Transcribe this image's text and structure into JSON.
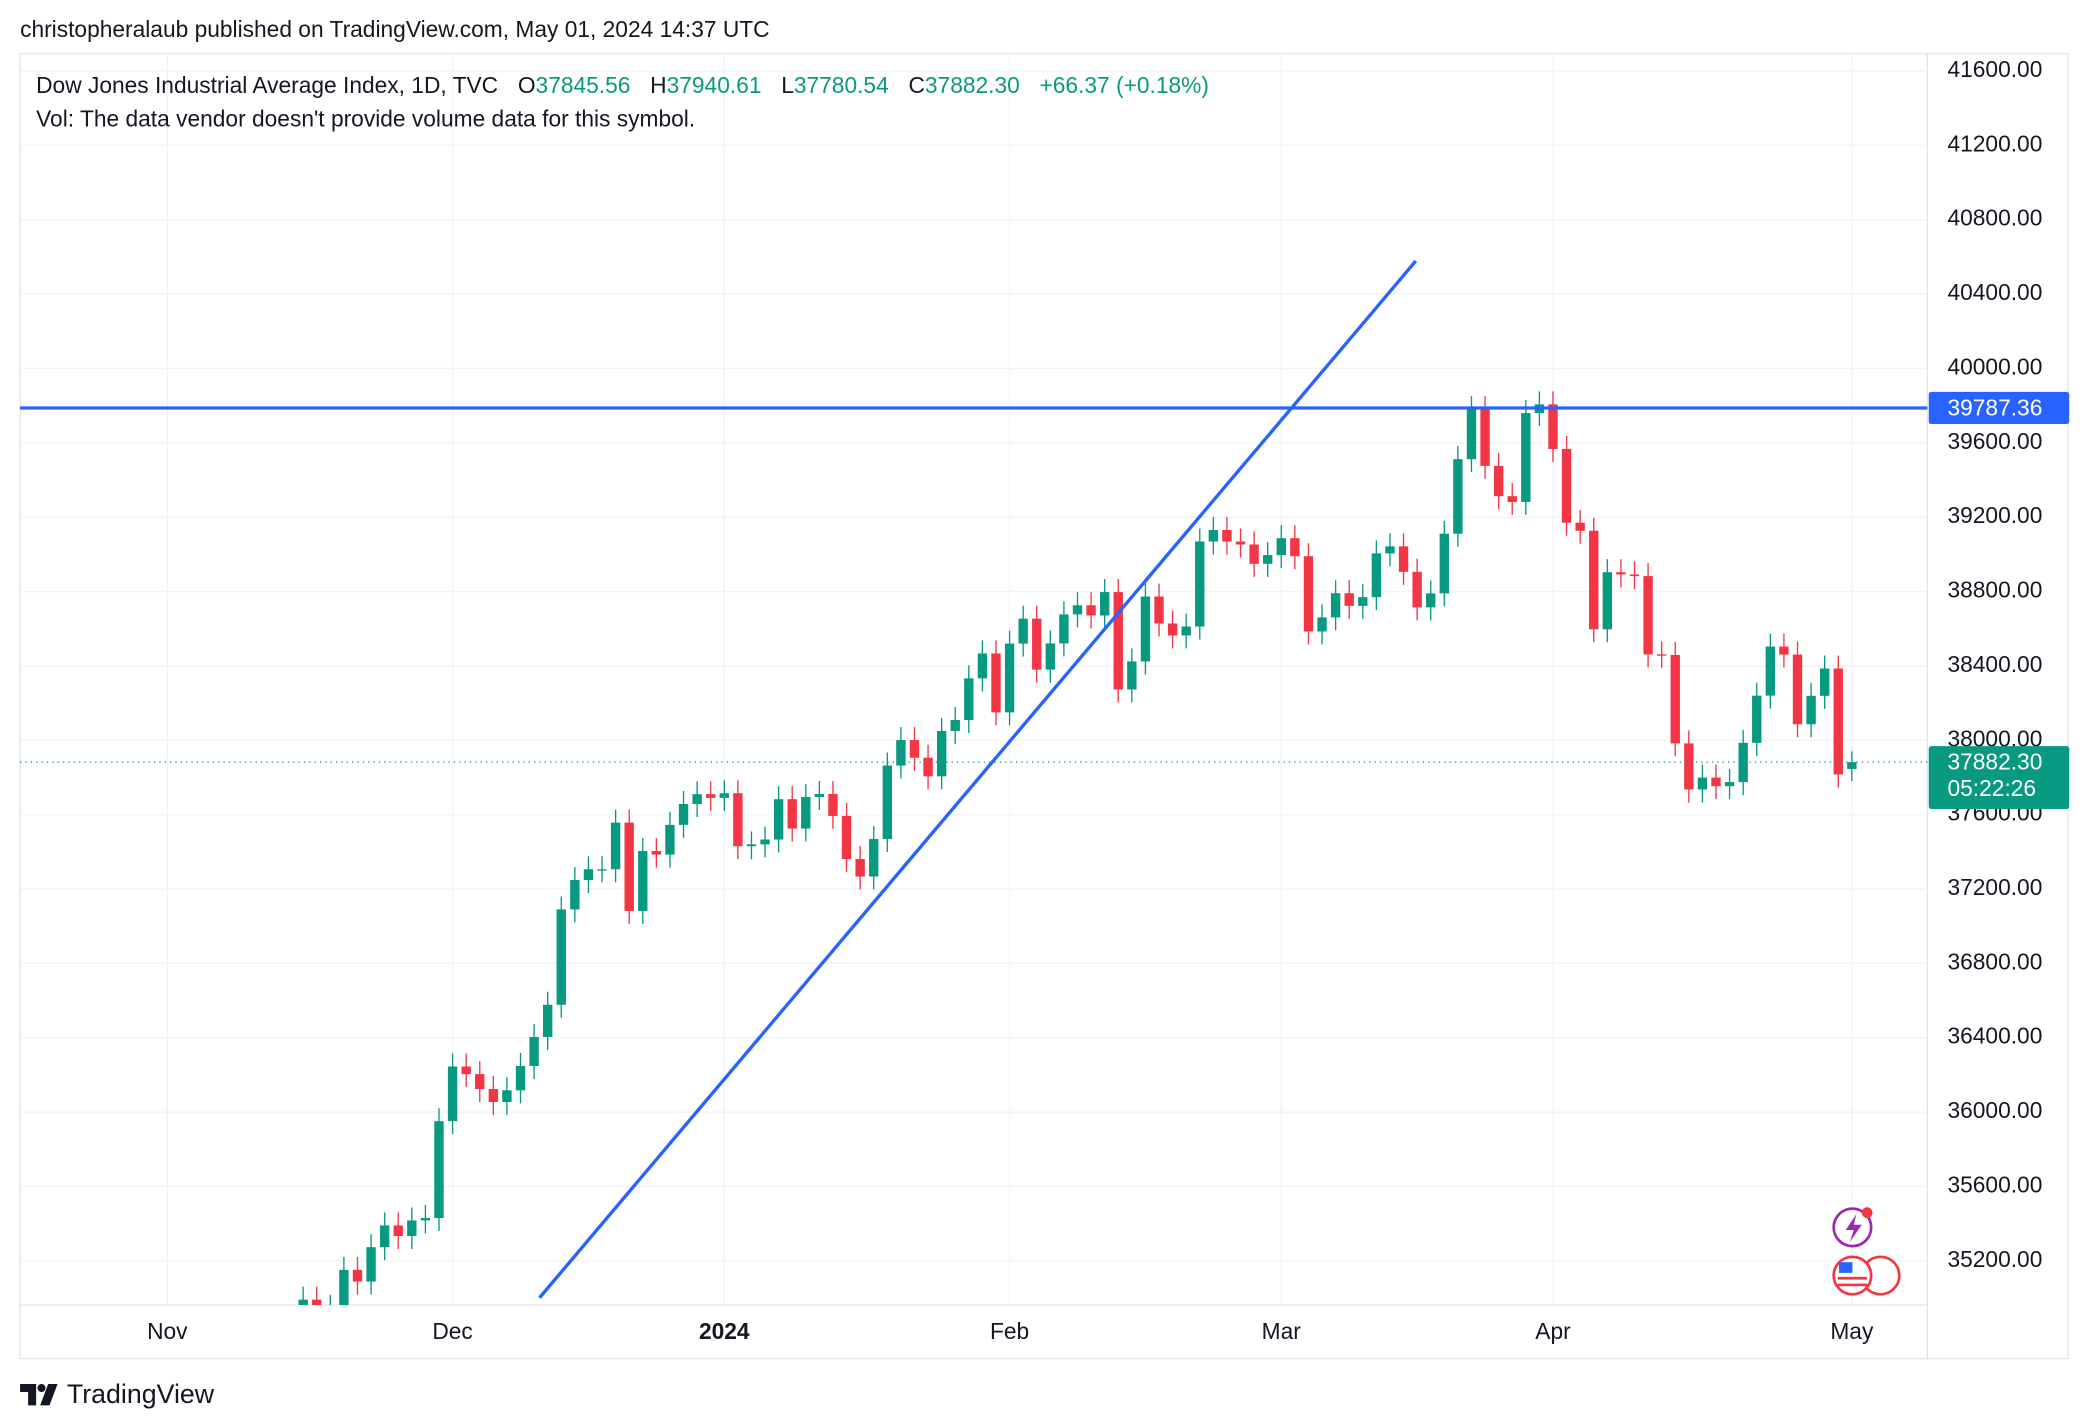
{
  "header": {
    "published": "christopheralaub published on TradingView.com, May 01, 2024 14:37 UTC"
  },
  "legend": {
    "symbol": "Dow Jones Industrial Average Index, 1D, TVC",
    "fields": [
      {
        "key": "O",
        "value": "37845.56"
      },
      {
        "key": "H",
        "value": "37940.61"
      },
      {
        "key": "L",
        "value": "37780.54"
      },
      {
        "key": "C",
        "value": "37882.30"
      }
    ],
    "change": "+66.37 (+0.18%)",
    "volume": "Vol: The data vendor doesn't provide volume data for this symbol."
  },
  "footer": {
    "brand": "TradingView"
  },
  "chart_data": {
    "type": "candlestick",
    "up_color": "#089981",
    "down_color": "#f23645",
    "grid": true,
    "xlim": [
      -10.837,
      129.56
    ],
    "xticks": [
      {
        "value": 0,
        "label": "Nov"
      },
      {
        "value": 21,
        "label": "Dec"
      },
      {
        "value": 41,
        "label": "2024"
      },
      {
        "value": 62,
        "label": "Feb"
      },
      {
        "value": 82,
        "label": "Mar"
      },
      {
        "value": 102,
        "label": "Apr"
      },
      {
        "value": 124,
        "label": "May"
      }
    ],
    "ylim": [
      34962,
      41694
    ],
    "yticks": [
      {
        "value": 35200,
        "label": "35200.00"
      },
      {
        "value": 35600,
        "label": "35600.00"
      },
      {
        "value": 36000,
        "label": "36000.00"
      },
      {
        "value": 36400,
        "label": "36400.00"
      },
      {
        "value": 36800,
        "label": "36800.00"
      },
      {
        "value": 37200,
        "label": "37200.00"
      },
      {
        "value": 37600,
        "label": "37600.00"
      },
      {
        "value": 38000,
        "label": "38000.00"
      },
      {
        "value": 38400,
        "label": "38400.00"
      },
      {
        "value": 38800,
        "label": "38800.00"
      },
      {
        "value": 39200,
        "label": "39200.00"
      },
      {
        "value": 39600,
        "label": "39600.00"
      },
      {
        "value": 40000,
        "label": "40000.00"
      },
      {
        "value": 40400,
        "label": "40400.00"
      },
      {
        "value": 40800,
        "label": "40800.00"
      },
      {
        "value": 41200,
        "label": "41200.00"
      },
      {
        "value": 41600,
        "label": "41600.00"
      }
    ],
    "candles": {
      "x": [
        10,
        11,
        12,
        13,
        14,
        15,
        16,
        17,
        18,
        19,
        20,
        21,
        22,
        23,
        24,
        25,
        26,
        27,
        28,
        29,
        30,
        31,
        32,
        33,
        34,
        35,
        36,
        37,
        38,
        39,
        40,
        41,
        42,
        43,
        44,
        45,
        46,
        47,
        48,
        49,
        50,
        51,
        52,
        53,
        54,
        55,
        56,
        57,
        58,
        59,
        60,
        61,
        62,
        63,
        64,
        65,
        66,
        67,
        68,
        69,
        70,
        71,
        72,
        73,
        74,
        75,
        76,
        77,
        78,
        79,
        80,
        81,
        82,
        83,
        84,
        85,
        86,
        87,
        88,
        89,
        90,
        91,
        92,
        93,
        94,
        95,
        96,
        97,
        98,
        99,
        100,
        101,
        102,
        103,
        104,
        105,
        106,
        107,
        108,
        109,
        110,
        111,
        112,
        113,
        114,
        115,
        116,
        117,
        118,
        119,
        120,
        121,
        122,
        123,
        124
      ],
      "open": [
        34900,
        34991,
        34945,
        34947,
        35151,
        35088,
        35273,
        35390,
        35333,
        35417,
        35430,
        35951,
        36245,
        36204,
        36124,
        36054,
        36117,
        36248,
        36404,
        36577,
        37090,
        37248,
        37306,
        37306,
        37557,
        37082,
        37404,
        37385,
        37545,
        37657,
        37710,
        37690,
        37715,
        37430,
        37440,
        37466,
        37683,
        37525,
        37695,
        37711,
        37593,
        37361,
        37267,
        37469,
        37864,
        38001,
        37906,
        37806,
        38050,
        38109,
        38333,
        38467,
        38150,
        38520,
        38654,
        38380,
        38521,
        38677,
        38726,
        38671,
        38797,
        38273,
        38424,
        38773,
        38628,
        38564,
        38612,
        39069,
        39131,
        39069,
        39053,
        38949,
        38996,
        39087,
        38990,
        38585,
        38661,
        38791,
        38723,
        38770,
        39005,
        39043,
        38906,
        38715,
        38790,
        39111,
        39512,
        39781,
        39476,
        39313,
        39282,
        39760,
        39807,
        39567,
        39170,
        39127,
        38597,
        38904,
        38892,
        38883,
        38462,
        38459,
        37983,
        37735,
        37799,
        37753,
        37775,
        37986,
        38240,
        38504,
        38461,
        38086,
        38239,
        38386,
        37845.56
      ],
      "high": [
        35061,
        35061,
        35017,
        35221,
        35221,
        35343,
        35460,
        35460,
        35487,
        35500,
        36021,
        36315,
        36315,
        36274,
        36194,
        36187,
        36318,
        36474,
        36647,
        37160,
        37318,
        37376,
        37376,
        37627,
        37627,
        37474,
        37474,
        37615,
        37727,
        37780,
        37780,
        37785,
        37785,
        37510,
        37536,
        37753,
        37753,
        37765,
        37781,
        37781,
        37663,
        37431,
        37539,
        37934,
        38071,
        38071,
        37976,
        38120,
        38179,
        38403,
        38537,
        38537,
        38590,
        38724,
        38724,
        38591,
        38747,
        38796,
        38796,
        38867,
        38867,
        38494,
        38843,
        38843,
        38698,
        38682,
        39139,
        39201,
        39201,
        39139,
        39123,
        39066,
        39157,
        39157,
        39060,
        38731,
        38861,
        38861,
        38840,
        39075,
        39113,
        39113,
        38976,
        38860,
        39181,
        39582,
        39851,
        39851,
        39546,
        39383,
        39830,
        39877,
        39877,
        39637,
        39240,
        39197,
        38974,
        38974,
        38962,
        38953,
        38532,
        38529,
        38053,
        37869,
        37869,
        37845,
        38056,
        38310,
        38574,
        38574,
        38531,
        38309,
        38456,
        38456,
        37940.61
      ],
      "low": [
        34830,
        34875,
        34875,
        34877,
        35018,
        35018,
        35203,
        35263,
        35263,
        35347,
        35360,
        35881,
        36134,
        36054,
        35984,
        35984,
        36047,
        36178,
        36334,
        36507,
        37020,
        37178,
        37236,
        37236,
        37012,
        37012,
        37315,
        37315,
        37475,
        37587,
        37620,
        37620,
        37360,
        37360,
        37370,
        37396,
        37455,
        37455,
        37625,
        37523,
        37291,
        37197,
        37197,
        37399,
        37794,
        37836,
        37736,
        37736,
        37980,
        38039,
        38263,
        38080,
        38080,
        38450,
        38310,
        38310,
        38451,
        38607,
        38601,
        38601,
        38203,
        38203,
        38354,
        38558,
        38494,
        38494,
        38542,
        38999,
        38999,
        38983,
        38879,
        38879,
        38926,
        38920,
        38515,
        38515,
        38591,
        38653,
        38653,
        38700,
        38935,
        38836,
        38645,
        38645,
        38720,
        39041,
        39442,
        39406,
        39243,
        39212,
        39212,
        39690,
        39497,
        39100,
        39057,
        38527,
        38527,
        38822,
        38813,
        38392,
        38389,
        37913,
        37665,
        37665,
        37683,
        37683,
        37705,
        37916,
        38170,
        38391,
        38016,
        38016,
        38169,
        37746,
        37780.54
      ],
      "close": [
        34991,
        34945,
        34947,
        35151,
        35088,
        35273,
        35390,
        35333,
        35417,
        35430,
        35951,
        36245,
        36204,
        36124,
        36054,
        36117,
        36248,
        36404,
        36577,
        37090,
        37248,
        37306,
        37306,
        37557,
        37082,
        37404,
        37385,
        37545,
        37657,
        37710,
        37690,
        37715,
        37430,
        37440,
        37466,
        37683,
        37525,
        37695,
        37711,
        37593,
        37361,
        37267,
        37469,
        37864,
        38001,
        37906,
        37806,
        38050,
        38109,
        38333,
        38467,
        38150,
        38520,
        38654,
        38380,
        38521,
        38677,
        38726,
        38671,
        38797,
        38273,
        38424,
        38773,
        38628,
        38564,
        38612,
        39069,
        39131,
        39069,
        39053,
        38949,
        38996,
        39087,
        38990,
        38585,
        38661,
        38791,
        38723,
        38770,
        39005,
        39043,
        38906,
        38715,
        38790,
        39111,
        39512,
        39781,
        39476,
        39313,
        39282,
        39760,
        39807,
        39567,
        39170,
        39127,
        38597,
        38904,
        38892,
        38883,
        38462,
        38459,
        37983,
        37735,
        37799,
        37753,
        37775,
        37986,
        38240,
        38504,
        38461,
        38086,
        38239,
        38386,
        37816,
        37882.3
      ]
    },
    "hline": {
      "value": 39787.36,
      "label": "39787.36",
      "color": "#2962ff"
    },
    "drawings": [
      {
        "type": "trend",
        "color": "#2962ff",
        "points": [
          [
            27.4,
            35001
          ],
          [
            91.9,
            40578
          ]
        ]
      }
    ],
    "last_price": {
      "value": 37882.3,
      "label": "37882.30",
      "countdown": "05:22:26"
    }
  }
}
